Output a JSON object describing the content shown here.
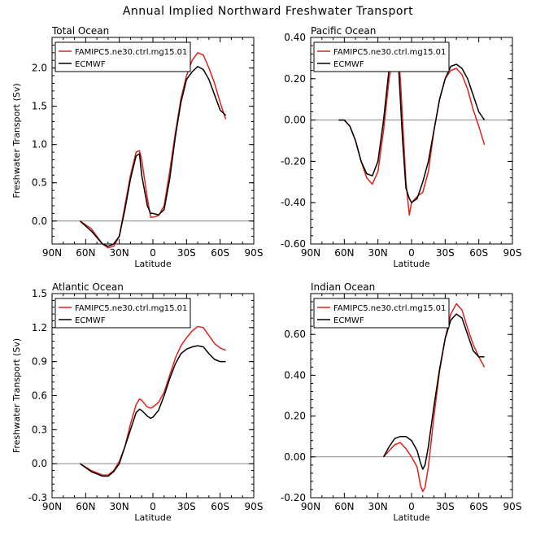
{
  "title": "Annual Implied Northward Freshwater Transport",
  "colors": {
    "case": "#e0201b",
    "ref": "#000000",
    "axis": "#000000",
    "zero": "#888888"
  },
  "chart_data": [
    {
      "type": "line",
      "title": "Total Ocean",
      "xlabel": "Latitude",
      "ylabel": "Freshwater Transport (Sv)",
      "x_ticks": [
        "90N",
        "60N",
        "30N",
        "0",
        "30S",
        "60S",
        "90S"
      ],
      "xlim": [
        90,
        -90
      ],
      "ylim": [
        -0.3,
        2.4
      ],
      "y_ticks": [
        "0.0",
        "0.5",
        "1.0",
        "1.5",
        "2.0"
      ],
      "y_tick_values": [
        0,
        0.5,
        1.0,
        1.5,
        2.0
      ],
      "legend": {
        "placement": "top-left",
        "entries": [
          "FAMIPC5.ne30.ctrl.mg15.01",
          "ECMWF"
        ]
      },
      "series": [
        {
          "name": "FAMIPC5.ne30.ctrl.mg15.01",
          "color": "#e0201b",
          "x": [
            65,
            55,
            45,
            40,
            35,
            30,
            25,
            20,
            15,
            12,
            10,
            5,
            2,
            0,
            -5,
            -10,
            -15,
            -20,
            -25,
            -30,
            -35,
            -40,
            -45,
            -50,
            -55,
            -60,
            -65
          ],
          "y": [
            0.0,
            -0.1,
            -0.3,
            -0.35,
            -0.33,
            -0.2,
            0.2,
            0.6,
            0.9,
            0.92,
            0.8,
            0.3,
            0.05,
            0.05,
            0.07,
            0.2,
            0.65,
            1.15,
            1.6,
            1.9,
            2.1,
            2.2,
            2.17,
            2.0,
            1.8,
            1.55,
            1.33
          ]
        },
        {
          "name": "ECMWF",
          "color": "#000000",
          "x": [
            65,
            55,
            45,
            40,
            35,
            30,
            25,
            20,
            15,
            12,
            10,
            5,
            2,
            0,
            -5,
            -10,
            -15,
            -20,
            -25,
            -30,
            -35,
            -40,
            -45,
            -50,
            -55,
            -60,
            -65
          ],
          "y": [
            0.0,
            -0.13,
            -0.3,
            -0.33,
            -0.3,
            -0.2,
            0.15,
            0.55,
            0.85,
            0.88,
            0.6,
            0.2,
            0.1,
            0.1,
            0.08,
            0.15,
            0.55,
            1.1,
            1.55,
            1.85,
            1.95,
            2.02,
            1.98,
            1.85,
            1.65,
            1.45,
            1.38
          ]
        }
      ]
    },
    {
      "type": "line",
      "title": "Pacific Ocean",
      "xlabel": "Latitude",
      "ylabel": "",
      "x_ticks": [
        "90N",
        "60N",
        "30N",
        "0",
        "30S",
        "60S",
        "90S"
      ],
      "xlim": [
        90,
        -90
      ],
      "ylim": [
        -0.6,
        0.4
      ],
      "y_ticks": [
        "0.40",
        "0.20",
        "0.00",
        "-0.20",
        "-0.40",
        "-0.60"
      ],
      "y_tick_values": [
        0.4,
        0.2,
        0.0,
        -0.2,
        -0.4,
        -0.6
      ],
      "legend": {
        "placement": "top-left",
        "entries": [
          "FAMIPC5.ne30.ctrl.mg15.01",
          "ECMWF"
        ]
      },
      "series": [
        {
          "name": "FAMIPC5.ne30.ctrl.mg15.01",
          "color": "#e0201b",
          "x": [
            65,
            60,
            55,
            50,
            45,
            40,
            35,
            30,
            25,
            20,
            15,
            12,
            10,
            8,
            5,
            2,
            0,
            -5,
            -10,
            -15,
            -20,
            -25,
            -30,
            -35,
            -40,
            -45,
            -50,
            -55,
            -60,
            -65
          ],
          "y": [
            0.0,
            0.0,
            -0.03,
            -0.1,
            -0.2,
            -0.28,
            -0.31,
            -0.25,
            -0.05,
            0.2,
            0.35,
            0.32,
            0.2,
            0.0,
            -0.3,
            -0.46,
            -0.4,
            -0.37,
            -0.35,
            -0.25,
            -0.05,
            0.1,
            0.2,
            0.24,
            0.25,
            0.22,
            0.15,
            0.05,
            -0.03,
            -0.12
          ]
        },
        {
          "name": "ECMWF",
          "color": "#000000",
          "x": [
            65,
            60,
            55,
            50,
            45,
            40,
            35,
            30,
            25,
            20,
            15,
            12,
            10,
            8,
            5,
            2,
            0,
            -5,
            -10,
            -15,
            -20,
            -25,
            -30,
            -35,
            -40,
            -45,
            -50,
            -55,
            -60,
            -65
          ],
          "y": [
            0.0,
            0.0,
            -0.03,
            -0.1,
            -0.2,
            -0.26,
            -0.27,
            -0.2,
            0.0,
            0.25,
            0.37,
            0.3,
            0.1,
            -0.1,
            -0.33,
            -0.38,
            -0.4,
            -0.38,
            -0.3,
            -0.2,
            -0.05,
            0.1,
            0.2,
            0.26,
            0.27,
            0.25,
            0.2,
            0.12,
            0.04,
            0.0
          ]
        }
      ]
    },
    {
      "type": "line",
      "title": "Atlantic Ocean",
      "xlabel": "Latitude",
      "ylabel": "Freshwater Transport (Sv)",
      "x_ticks": [
        "90N",
        "60N",
        "30N",
        "0",
        "30S",
        "60S",
        "90S"
      ],
      "xlim": [
        90,
        -90
      ],
      "ylim": [
        -0.3,
        1.5
      ],
      "y_ticks": [
        "1.5",
        "1.2",
        "0.9",
        "0.6",
        "0.3",
        "0.0",
        "-0.3"
      ],
      "y_tick_values": [
        1.5,
        1.2,
        0.9,
        0.6,
        0.3,
        0.0,
        -0.3
      ],
      "legend": {
        "placement": "top-left",
        "entries": [
          "FAMIPC5.ne30.ctrl.mg15.01",
          "ECMWF"
        ]
      },
      "series": [
        {
          "name": "FAMIPC5.ne30.ctrl.mg15.01",
          "color": "#e0201b",
          "x": [
            65,
            55,
            45,
            40,
            35,
            30,
            25,
            20,
            15,
            12,
            10,
            5,
            2,
            0,
            -5,
            -10,
            -15,
            -20,
            -25,
            -30,
            -35,
            -40,
            -45,
            -50,
            -55,
            -60,
            -65
          ],
          "y": [
            0.0,
            -0.06,
            -0.1,
            -0.1,
            -0.06,
            0.02,
            0.15,
            0.35,
            0.52,
            0.57,
            0.56,
            0.5,
            0.49,
            0.5,
            0.54,
            0.63,
            0.78,
            0.93,
            1.04,
            1.11,
            1.17,
            1.21,
            1.2,
            1.13,
            1.06,
            1.02,
            1.0
          ]
        },
        {
          "name": "ECMWF",
          "color": "#000000",
          "x": [
            65,
            55,
            45,
            40,
            35,
            30,
            25,
            20,
            15,
            12,
            10,
            5,
            2,
            0,
            -5,
            -10,
            -15,
            -20,
            -25,
            -30,
            -35,
            -40,
            -45,
            -50,
            -55,
            -60,
            -65
          ],
          "y": [
            0.0,
            -0.07,
            -0.11,
            -0.11,
            -0.07,
            0.0,
            0.15,
            0.3,
            0.45,
            0.48,
            0.47,
            0.42,
            0.4,
            0.41,
            0.47,
            0.6,
            0.75,
            0.88,
            0.97,
            1.01,
            1.03,
            1.04,
            1.03,
            0.97,
            0.92,
            0.9,
            0.9
          ]
        }
      ]
    },
    {
      "type": "line",
      "title": "Indian Ocean",
      "xlabel": "Latitude",
      "ylabel": "",
      "x_ticks": [
        "90N",
        "60N",
        "30N",
        "0",
        "30S",
        "60S",
        "90S"
      ],
      "xlim": [
        90,
        -90
      ],
      "ylim": [
        -0.2,
        0.8
      ],
      "y_ticks": [
        "0.60",
        "0.40",
        "0.20",
        "0.00",
        "-0.20"
      ],
      "y_tick_values": [
        0.6,
        0.4,
        0.2,
        0.0,
        -0.2
      ],
      "legend": {
        "placement": "top-left",
        "entries": [
          "FAMIPC5.ne30.ctrl.mg15.01",
          "ECMWF"
        ]
      },
      "series": [
        {
          "name": "FAMIPC5.ne30.ctrl.mg15.01",
          "color": "#e0201b",
          "x": [
            25,
            20,
            15,
            10,
            5,
            0,
            -5,
            -8,
            -10,
            -12,
            -15,
            -20,
            -25,
            -30,
            -35,
            -40,
            -45,
            -50,
            -55,
            -60,
            -65
          ],
          "y": [
            0.0,
            0.03,
            0.06,
            0.07,
            0.04,
            0.0,
            -0.05,
            -0.14,
            -0.17,
            -0.15,
            -0.05,
            0.2,
            0.42,
            0.58,
            0.7,
            0.75,
            0.72,
            0.63,
            0.55,
            0.49,
            0.44
          ]
        },
        {
          "name": "ECMWF",
          "color": "#000000",
          "x": [
            25,
            20,
            15,
            10,
            5,
            0,
            -5,
            -8,
            -10,
            -12,
            -15,
            -20,
            -25,
            -30,
            -35,
            -40,
            -45,
            -50,
            -55,
            -60,
            -65
          ],
          "y": [
            0.0,
            0.05,
            0.09,
            0.1,
            0.1,
            0.08,
            0.03,
            -0.03,
            -0.06,
            -0.04,
            0.05,
            0.25,
            0.43,
            0.58,
            0.67,
            0.7,
            0.68,
            0.6,
            0.52,
            0.49,
            0.49
          ]
        }
      ]
    }
  ]
}
